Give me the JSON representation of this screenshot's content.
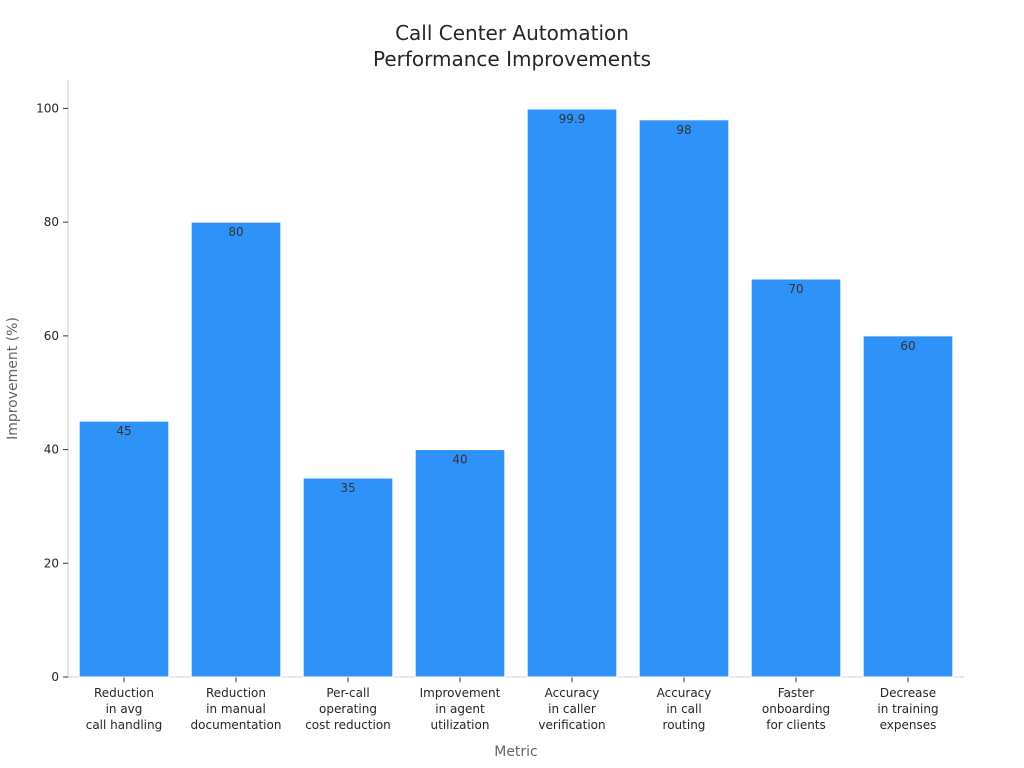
{
  "chart_data": {
    "type": "bar",
    "title": [
      "Call Center Automation",
      "Performance Improvements"
    ],
    "xlabel": "Metric",
    "ylabel": "Improvement (%)",
    "ylim": [
      0,
      105
    ],
    "yticks": [
      0,
      20,
      40,
      60,
      80,
      100
    ],
    "grid": false,
    "categories": [
      [
        "Reduction",
        "in avg",
        "call handling"
      ],
      [
        "Reduction",
        "in manual",
        "documentation"
      ],
      [
        "Per-call",
        "operating",
        "cost reduction"
      ],
      [
        "Improvement",
        "in agent",
        "utilization"
      ],
      [
        "Accuracy",
        "in caller",
        "verification"
      ],
      [
        "Accuracy",
        "in call",
        "routing"
      ],
      [
        "Faster",
        "onboarding",
        "for clients"
      ],
      [
        "Decrease",
        "in training",
        "expenses"
      ]
    ],
    "values": [
      45,
      80,
      35,
      40,
      99.9,
      98,
      70,
      60
    ],
    "value_labels": [
      "45",
      "80",
      "35",
      "40",
      "99.9",
      "98",
      "70",
      "60"
    ],
    "bar_color": "#2f92f8"
  }
}
